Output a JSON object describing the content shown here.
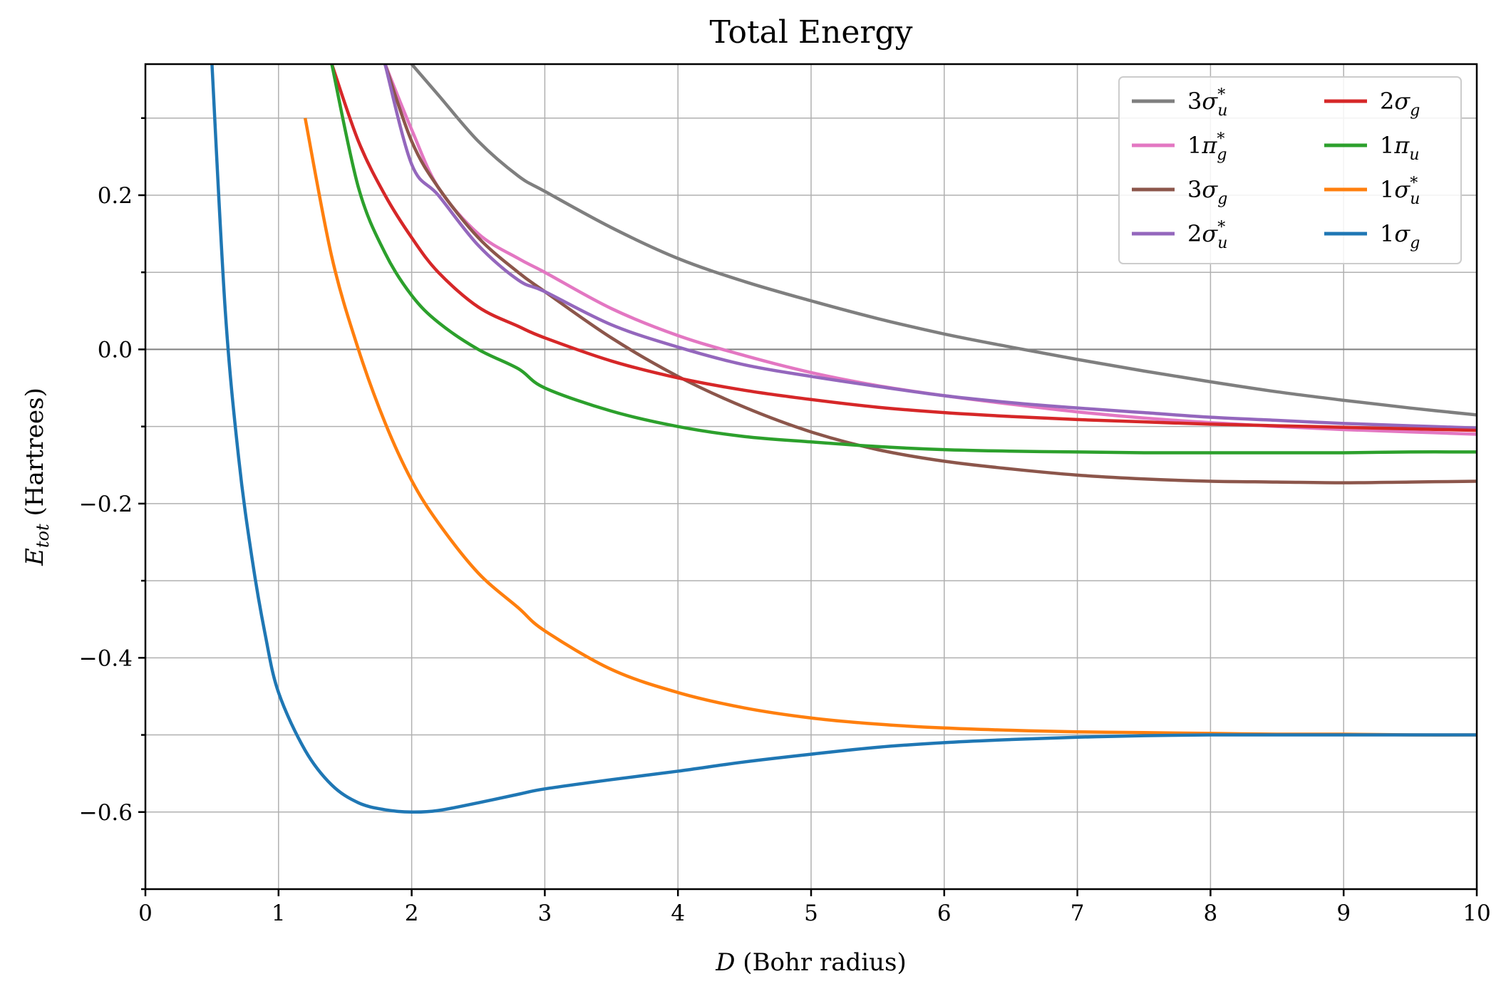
{
  "chart_data": {
    "type": "line",
    "title": "Total Energy",
    "xlabel": "D (Bohr radius)",
    "xlabel_parts": {
      "var": "D",
      "rest": " (Bohr radius)"
    },
    "ylabel": "E_tot (Hartrees)",
    "ylabel_parts": {
      "var": "E",
      "sub": "tot",
      "rest": " (Hartrees)"
    },
    "xlim": [
      0,
      10
    ],
    "ylim": [
      -0.7,
      0.37
    ],
    "xticks": [
      0,
      1,
      2,
      3,
      4,
      5,
      6,
      7,
      8,
      9,
      10
    ],
    "xtick_labels": [
      "0",
      "1",
      "2",
      "3",
      "4",
      "5",
      "6",
      "7",
      "8",
      "9",
      "10"
    ],
    "yticks": [
      -0.6,
      -0.4,
      -0.2,
      0.0,
      0.2
    ],
    "ytick_labels": [
      "−0.6",
      "−0.4",
      "−0.2",
      "0.0",
      "0.2"
    ],
    "yminor_ticks": [
      -0.7,
      -0.5,
      -0.3,
      -0.1,
      0.1,
      0.3
    ],
    "grid": true,
    "zero_line": true,
    "legend": {
      "placement": "top-right",
      "columns": 2
    },
    "x": [
      0.3,
      0.4,
      0.5,
      0.6,
      0.7,
      0.8,
      0.9,
      1.0,
      1.2,
      1.4,
      1.6,
      1.8,
      2.0,
      2.2,
      2.5,
      2.8,
      3.0,
      3.5,
      4.0,
      4.5,
      5.0,
      5.5,
      6.0,
      6.5,
      7.0,
      7.5,
      8.0,
      8.5,
      9.0,
      9.5,
      10.0
    ],
    "series": [
      {
        "name": "3σ*u",
        "label_main": "3σ",
        "label_sub": "u",
        "label_sup": "*",
        "color": "#7f7f7f",
        "values": [
          null,
          null,
          null,
          null,
          null,
          null,
          null,
          null,
          null,
          null,
          null,
          null,
          0.37,
          0.33,
          0.27,
          0.225,
          0.205,
          0.158,
          0.118,
          0.088,
          0.063,
          0.04,
          0.02,
          0.003,
          -0.013,
          -0.028,
          -0.042,
          -0.055,
          -0.066,
          -0.076,
          -0.085
        ]
      },
      {
        "name": "1π*g",
        "label_main": "1π",
        "label_sub": "g",
        "label_sup": "*",
        "color": "#e377c2",
        "values": [
          null,
          null,
          null,
          null,
          null,
          null,
          null,
          null,
          null,
          null,
          null,
          0.37,
          0.285,
          0.21,
          0.15,
          0.118,
          0.1,
          0.053,
          0.018,
          -0.008,
          -0.03,
          -0.047,
          -0.06,
          -0.071,
          -0.081,
          -0.089,
          -0.095,
          -0.1,
          -0.104,
          -0.107,
          -0.11
        ]
      },
      {
        "name": "3σg",
        "label_main": "3σ",
        "label_sub": "g",
        "label_sup": "",
        "color": "#8c564b",
        "values": [
          null,
          null,
          null,
          null,
          null,
          null,
          null,
          null,
          null,
          null,
          null,
          0.37,
          0.27,
          0.21,
          0.145,
          0.1,
          0.075,
          0.015,
          -0.035,
          -0.075,
          -0.107,
          -0.13,
          -0.145,
          -0.155,
          -0.163,
          -0.168,
          -0.171,
          -0.172,
          -0.173,
          -0.172,
          -0.171
        ]
      },
      {
        "name": "2σ*u",
        "label_main": "2σ",
        "label_sub": "u",
        "label_sup": "*",
        "color": "#9467bd",
        "values": [
          null,
          null,
          null,
          null,
          null,
          null,
          null,
          null,
          null,
          null,
          null,
          0.37,
          0.24,
          0.2,
          0.135,
          0.09,
          0.075,
          0.032,
          0.003,
          -0.02,
          -0.035,
          -0.048,
          -0.06,
          -0.069,
          -0.076,
          -0.082,
          -0.088,
          -0.092,
          -0.096,
          -0.099,
          -0.102
        ]
      },
      {
        "name": "2σg",
        "label_main": "2σ",
        "label_sub": "g",
        "label_sup": "",
        "color": "#d62728",
        "values": [
          null,
          null,
          null,
          null,
          null,
          null,
          null,
          null,
          null,
          0.37,
          0.27,
          0.2,
          0.145,
          0.1,
          0.055,
          0.03,
          0.015,
          -0.015,
          -0.037,
          -0.053,
          -0.065,
          -0.075,
          -0.082,
          -0.087,
          -0.091,
          -0.094,
          -0.097,
          -0.099,
          -0.101,
          -0.103,
          -0.105
        ]
      },
      {
        "name": "1πu",
        "label_main": "1π",
        "label_sub": "u",
        "label_sup": "",
        "color": "#2ca02c",
        "values": [
          null,
          null,
          null,
          null,
          null,
          null,
          null,
          null,
          null,
          0.37,
          0.21,
          0.125,
          0.07,
          0.035,
          0.0,
          -0.025,
          -0.05,
          -0.08,
          -0.1,
          -0.113,
          -0.12,
          -0.126,
          -0.13,
          -0.132,
          -0.133,
          -0.134,
          -0.134,
          -0.134,
          -0.134,
          -0.133,
          -0.133
        ]
      },
      {
        "name": "1σ*u",
        "label_main": "1σ",
        "label_sub": "u",
        "label_sup": "*",
        "color": "#ff7f0e",
        "values": [
          null,
          null,
          null,
          null,
          null,
          null,
          null,
          null,
          0.3,
          0.12,
          0.0,
          -0.095,
          -0.17,
          -0.225,
          -0.29,
          -0.335,
          -0.365,
          -0.415,
          -0.445,
          -0.465,
          -0.478,
          -0.486,
          -0.491,
          -0.494,
          -0.496,
          -0.497,
          -0.498,
          -0.499,
          -0.499,
          -0.5,
          -0.5
        ]
      },
      {
        "name": "1σg",
        "label_main": "1σ",
        "label_sub": "g",
        "label_sup": "",
        "color": "#1f77b4",
        "values": [
          null,
          null,
          0.37,
          0.05,
          -0.14,
          -0.27,
          -0.37,
          -0.445,
          -0.52,
          -0.565,
          -0.588,
          -0.597,
          -0.6,
          -0.598,
          -0.588,
          -0.577,
          -0.57,
          -0.558,
          -0.547,
          -0.535,
          -0.525,
          -0.516,
          -0.51,
          -0.506,
          -0.503,
          -0.501,
          -0.5,
          -0.5,
          -0.5,
          -0.5,
          -0.5
        ]
      }
    ]
  }
}
